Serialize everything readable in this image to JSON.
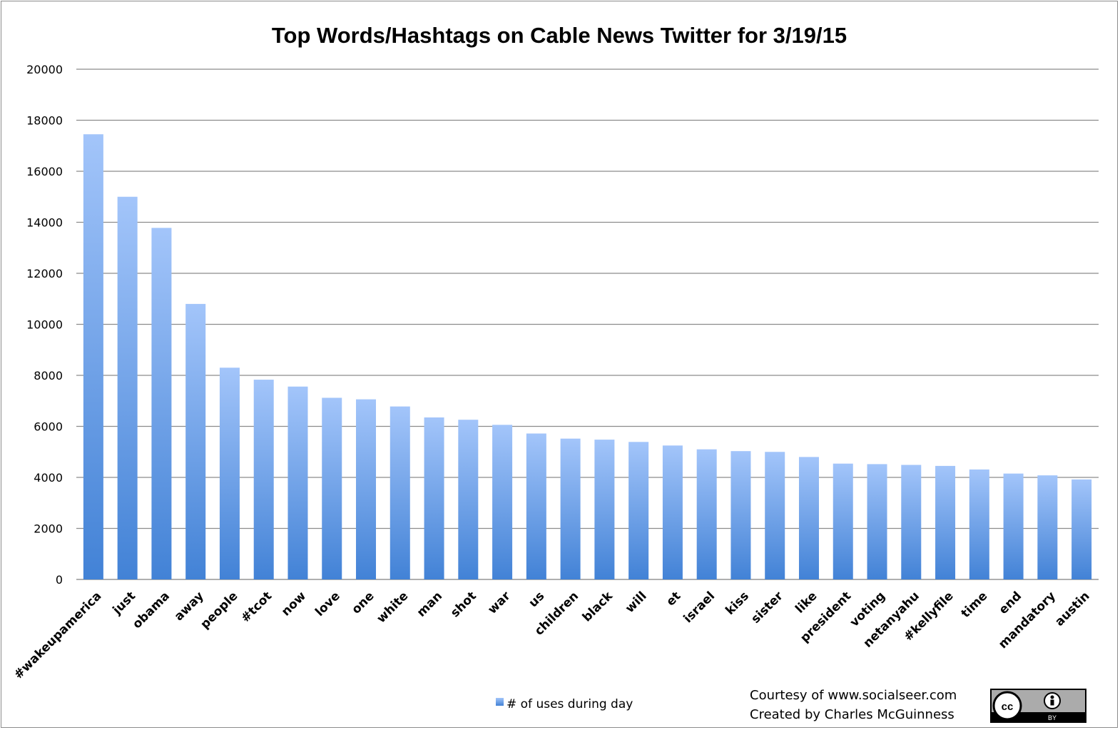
{
  "chart_data": {
    "type": "bar",
    "title": "Top Words/Hashtags on Cable News Twitter for 3/19/15",
    "xlabel": "",
    "ylabel": "",
    "ylim": [
      0,
      20000
    ],
    "yticks": [
      0,
      2000,
      4000,
      6000,
      8000,
      10000,
      12000,
      14000,
      16000,
      18000,
      20000
    ],
    "grid": true,
    "legend_position": "bottom",
    "categories": [
      "#wakeupamerica",
      "just",
      "obama",
      "away",
      "people",
      "#tcot",
      "now",
      "love",
      "one",
      "white",
      "man",
      "shot",
      "war",
      "us",
      "children",
      "black",
      "will",
      "et",
      "israel",
      "kiss",
      "sister",
      "like",
      "president",
      "voting",
      "netanyahu",
      "#kellyfile",
      "time",
      "end",
      "mandatory",
      "austin"
    ],
    "series": [
      {
        "name": "# of uses during day",
        "values": [
          17450,
          15000,
          13780,
          10800,
          8300,
          7830,
          7560,
          7120,
          7060,
          6780,
          6350,
          6260,
          6060,
          5720,
          5520,
          5480,
          5390,
          5250,
          5100,
          5030,
          5000,
          4800,
          4540,
          4520,
          4490,
          4450,
          4310,
          4150,
          4080,
          3920
        ],
        "color_top": "#a3c5fa",
        "color_bottom": "#4282d6"
      }
    ]
  },
  "credits": {
    "line1": "Courtesy of www.socialseer.com",
    "line2": "Created by Charles McGuinness"
  },
  "license_badge": {
    "left": "cc",
    "right": "BY",
    "icon": "cc-by-icon"
  }
}
